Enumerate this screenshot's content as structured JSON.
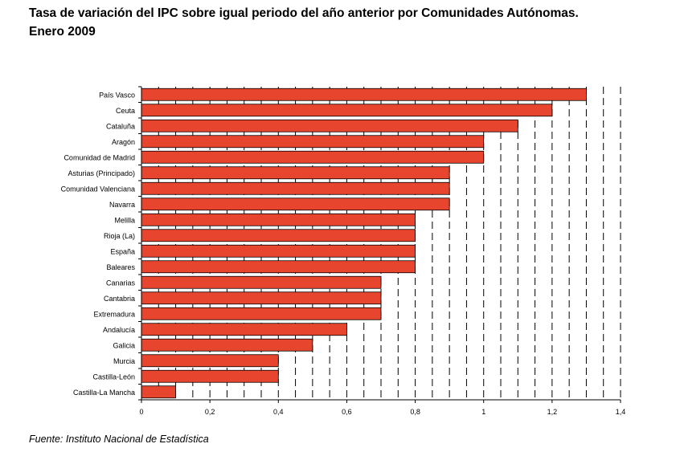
{
  "header": {
    "title_line1": "Tasa de variación del IPC sobre igual periodo del año anterior por Comunidades Autónomas.",
    "title_line2": "Enero 2009"
  },
  "footer": {
    "source": "Fuente: Instituto Nacional de Estadística"
  },
  "chart_data": {
    "type": "bar",
    "orientation": "horizontal",
    "title": "Tasa de variación del IPC sobre igual periodo del año anterior por Comunidades Autónomas. Enero 2009",
    "xlabel": "",
    "ylabel": "",
    "xlim": [
      0,
      1.4
    ],
    "xticks": [
      0,
      0.2,
      0.4,
      0.6,
      0.8,
      1,
      1.2,
      1.4
    ],
    "xtick_labels": [
      "0",
      "0,2",
      "0,4",
      "0,6",
      "0,8",
      "1",
      "1,2",
      "1,4"
    ],
    "grid": "vertical dashed",
    "legend": "none",
    "bar_color": "#e8452f",
    "categories": [
      "País Vasco",
      "Ceuta",
      "Cataluña",
      "Aragón",
      "Comunidad de Madrid",
      "Asturias (Principado)",
      "Comunidad Valenciana",
      "Navarra",
      "Melilla",
      "Rioja (La)",
      "España",
      "Baleares",
      "Canarias",
      "Cantabria",
      "Extremadura",
      "Andalucía",
      "Galicia",
      "Murcia",
      "Castilla-León",
      "Castilla-La Mancha"
    ],
    "values": [
      1.3,
      1.2,
      1.1,
      1.0,
      1.0,
      0.9,
      0.9,
      0.9,
      0.8,
      0.8,
      0.8,
      0.8,
      0.7,
      0.7,
      0.7,
      0.6,
      0.5,
      0.4,
      0.4,
      0.1
    ]
  }
}
